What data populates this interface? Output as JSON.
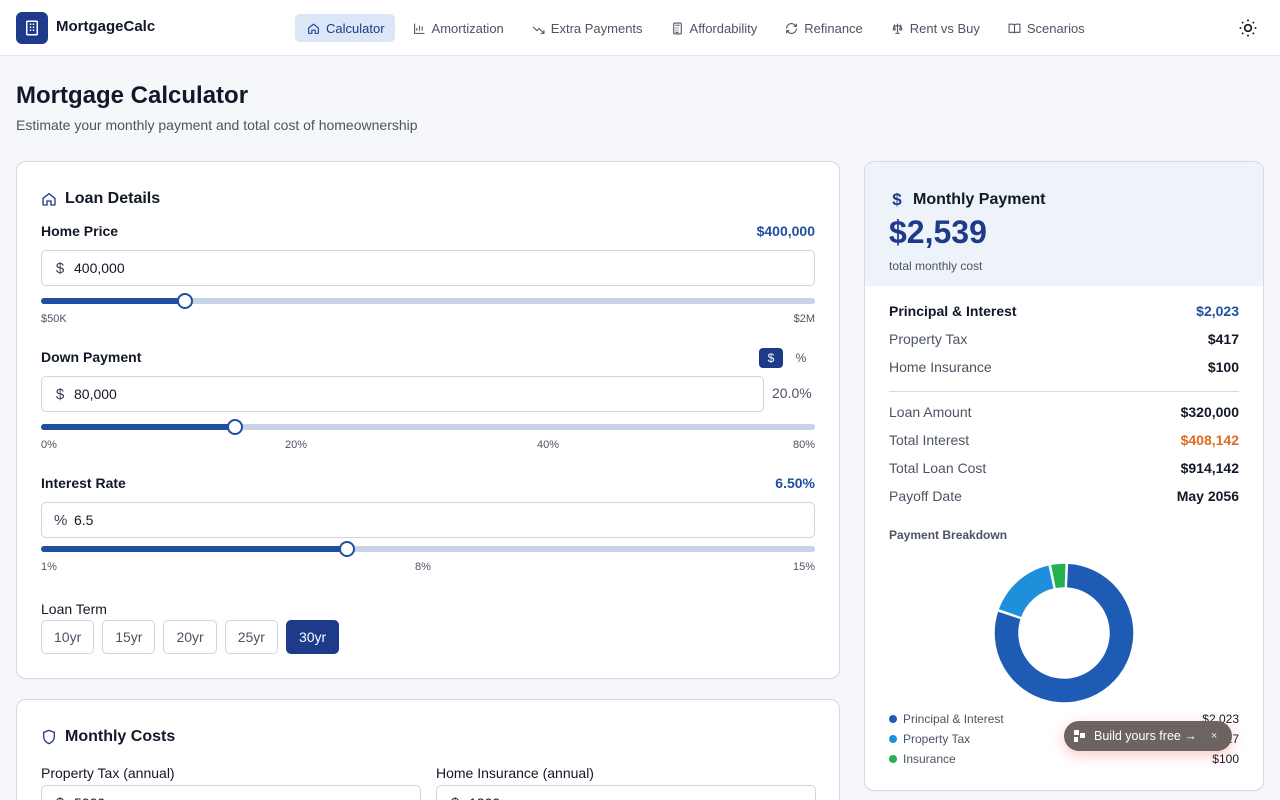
{
  "app": {
    "brand": "MortgageCalc"
  },
  "nav": [
    {
      "label": "Calculator",
      "icon": "home-icon",
      "active": true
    },
    {
      "label": "Amortization",
      "icon": "bar-chart-icon"
    },
    {
      "label": "Extra Payments",
      "icon": "trend-icon"
    },
    {
      "label": "Affordability",
      "icon": "calculator-icon"
    },
    {
      "label": "Refinance",
      "icon": "refresh-icon"
    },
    {
      "label": "Rent vs Buy",
      "icon": "scale-icon"
    },
    {
      "label": "Scenarios",
      "icon": "book-icon"
    }
  ],
  "header": {
    "title": "Mortgage Calculator",
    "subtitle": "Estimate your monthly payment and total cost of homeownership"
  },
  "loan": {
    "title": "Loan Details",
    "home_price": {
      "label": "Home Price",
      "display": "$400,000",
      "prefix": "$",
      "value": "400,000",
      "min_label": "$50K",
      "max_label": "$2M",
      "fraction": 0.186
    },
    "down_payment": {
      "label": "Down Payment",
      "prefix": "$",
      "value": "80,000",
      "percent_label": "20.0%",
      "mode_dollar": "$",
      "mode_percent": "%",
      "ticks": [
        "0%",
        "20%",
        "40%",
        "80%"
      ],
      "fraction": 0.25
    },
    "interest": {
      "label": "Interest Rate",
      "display": "6.50%",
      "prefix": "%",
      "value": "6.5",
      "ticks": [
        "1%",
        "8%",
        "15%"
      ],
      "fraction": 0.395
    },
    "term": {
      "label": "Loan Term",
      "options": [
        "10yr",
        "15yr",
        "20yr",
        "25yr",
        "30yr"
      ],
      "selected": "30yr"
    }
  },
  "monthly_costs": {
    "title": "Monthly Costs",
    "tax_label": "Property Tax (annual)",
    "tax_value": "5000",
    "tax_prefix": "$",
    "insurance_label": "Home Insurance (annual)",
    "insurance_value": "1200",
    "insurance_prefix": "$"
  },
  "summary": {
    "title": "Monthly Payment",
    "amount": "$2,539",
    "caption": "total monthly cost",
    "pi_label": "Principal & Interest",
    "pi_value": "$2,023",
    "tax_label": "Property Tax",
    "tax_value": "$417",
    "ins_label": "Home Insurance",
    "ins_value": "$100",
    "loan_amount_label": "Loan Amount",
    "loan_amount_value": "$320,000",
    "total_interest_label": "Total Interest",
    "total_interest_value": "$408,142",
    "total_cost_label": "Total Loan Cost",
    "total_cost_value": "$914,142",
    "payoff_label": "Payoff Date",
    "payoff_value": "May 2056",
    "breakdown_title": "Payment Breakdown",
    "legend": [
      {
        "label": "Principal & Interest",
        "amount": "$2,023",
        "color": "#1e5bb5"
      },
      {
        "label": "Property Tax",
        "amount": "$417",
        "color": "#1f8fdb"
      },
      {
        "label": "Insurance",
        "amount": "$100",
        "color": "#22b14c"
      }
    ]
  },
  "chart_data": {
    "type": "pie",
    "categories": [
      "Principal & Interest",
      "Property Tax",
      "Insurance"
    ],
    "values": [
      2023,
      417,
      100
    ],
    "colors": [
      "#1e5bb5",
      "#1f8fdb",
      "#22b14c"
    ],
    "title": "Payment Breakdown"
  },
  "promo": {
    "label": "Build yours free →",
    "close": "×"
  },
  "colors": {
    "accent": "#1e3a8a",
    "interest": "#e06a1f"
  }
}
